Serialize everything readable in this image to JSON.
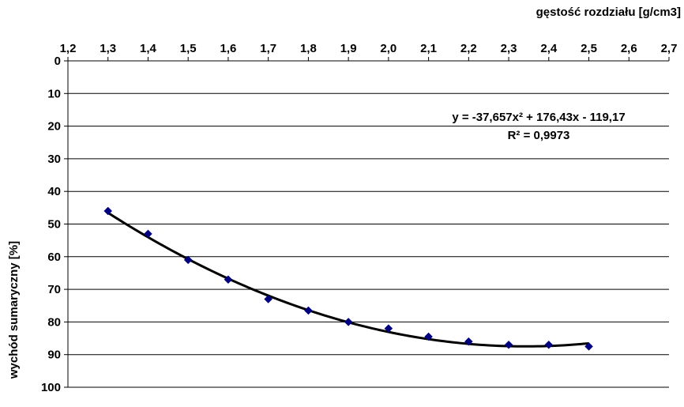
{
  "chart_data": {
    "type": "scatter",
    "xlabel": "gęstość rozdziału [g/cm3]",
    "ylabel": "wychód sumaryczny [%]",
    "xlim": [
      1.2,
      2.7
    ],
    "ylim": [
      0,
      100
    ],
    "y_inverted": true,
    "x_axis_position": "top",
    "grid": {
      "horizontal": true,
      "vertical": false
    },
    "x_ticks": [
      "1,2",
      "1,3",
      "1,4",
      "1,5",
      "1,6",
      "1,7",
      "1,8",
      "1,9",
      "2,0",
      "2,1",
      "2,2",
      "2,3",
      "2,4",
      "2,5",
      "2,6",
      "2,7"
    ],
    "y_ticks": [
      "0",
      "10",
      "20",
      "30",
      "40",
      "50",
      "60",
      "70",
      "80",
      "90",
      "100"
    ],
    "series": [
      {
        "marker": "diamond",
        "color": "#000080",
        "x": [
          1.3,
          1.4,
          1.5,
          1.6,
          1.7,
          1.8,
          1.9,
          2.0,
          2.1,
          2.2,
          2.3,
          2.4,
          2.5
        ],
        "y": [
          46,
          53,
          61,
          67,
          73,
          76.5,
          80,
          82,
          84.5,
          86,
          87,
          87,
          87.5
        ]
      }
    ],
    "trendline": {
      "type": "polynomial",
      "coefficients": [
        -37.657,
        176.43,
        -119.17
      ],
      "color": "#000000",
      "equation": "y = -37,657x² + 176,43x - 119,17",
      "r2": "R² = 0,9973"
    }
  }
}
